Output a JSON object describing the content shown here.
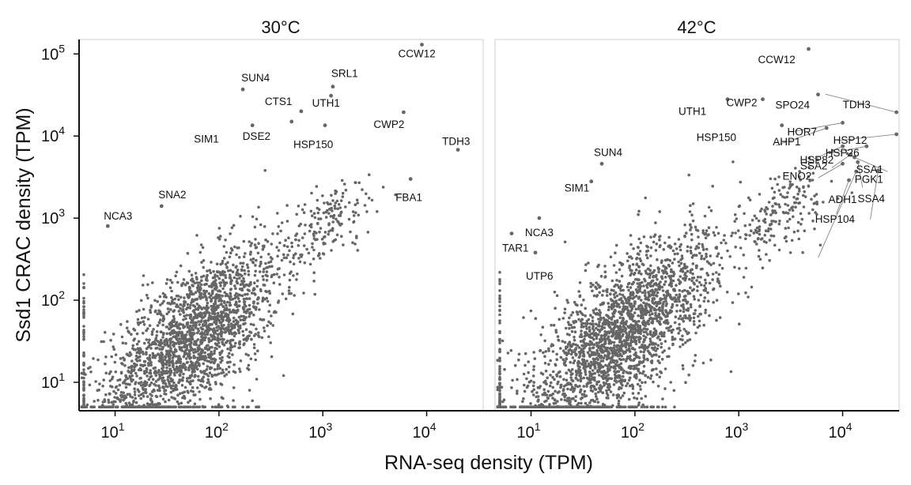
{
  "chart_data": {
    "type": "scatter",
    "xlabel": "RNA-seq density (TPM)",
    "ylabel": "Ssd1 CRAC density (TPM)",
    "x_scale": "log",
    "y_scale": "log",
    "xlim": [
      4.5,
      35000
    ],
    "ylim": [
      4.5,
      150000
    ],
    "x_ticks": [
      {
        "value": 10,
        "label": "10",
        "exp": "1"
      },
      {
        "value": 100,
        "label": "10",
        "exp": "2"
      },
      {
        "value": 1000,
        "label": "10",
        "exp": "3"
      },
      {
        "value": 10000,
        "label": "10",
        "exp": "4"
      }
    ],
    "y_ticks": [
      {
        "value": 10,
        "label": "10",
        "exp": "1"
      },
      {
        "value": 100,
        "label": "10",
        "exp": "2"
      },
      {
        "value": 1000,
        "label": "10",
        "exp": "3"
      },
      {
        "value": 10000,
        "label": "10",
        "exp": "4"
      },
      {
        "value": 100000,
        "label": "10",
        "exp": "5"
      }
    ],
    "grid": false,
    "point_color": "#666666",
    "panels": [
      {
        "title": "30°C",
        "labeled_points": [
          {
            "name": "CCW12",
            "x": 9000,
            "y": 130000
          },
          {
            "name": "SUN4",
            "x": 170,
            "y": 37000
          },
          {
            "name": "SRL1",
            "x": 1250,
            "y": 40000
          },
          {
            "name": "CTS1",
            "x": 620,
            "y": 20000
          },
          {
            "name": "UTH1",
            "x": 1200,
            "y": 31000
          },
          {
            "name": "SIM1",
            "x": 210,
            "y": 13500
          },
          {
            "name": "DSE2",
            "x": 500,
            "y": 15000
          },
          {
            "name": "HSP150",
            "x": 1050,
            "y": 13500
          },
          {
            "name": "CWP2",
            "x": 6000,
            "y": 19500
          },
          {
            "name": "TDH3",
            "x": 20000,
            "y": 6800
          },
          {
            "name": "FBA1",
            "x": 7000,
            "y": 3000
          },
          {
            "name": "SNA2",
            "x": 28,
            "y": 1400
          },
          {
            "name": "NCA3",
            "x": 8.5,
            "y": 800
          }
        ]
      },
      {
        "title": "42°C",
        "labeled_points": [
          {
            "name": "CCW12",
            "x": 4700,
            "y": 115000
          },
          {
            "name": "SPO24",
            "x": 5800,
            "y": 32000
          },
          {
            "name": "TDH3",
            "x": 33000,
            "y": 19500
          },
          {
            "name": "CWP2",
            "x": 1700,
            "y": 28000
          },
          {
            "name": "UTH1",
            "x": 780,
            "y": 28000
          },
          {
            "name": "HOR7",
            "x": 10000,
            "y": 14500
          },
          {
            "name": "HSP12",
            "x": 33000,
            "y": 10500
          },
          {
            "name": "HSP150",
            "x": 2600,
            "y": 13500
          },
          {
            "name": "AHP1",
            "x": 7000,
            "y": 12500
          },
          {
            "name": "HSP82",
            "x": 10000,
            "y": 7500
          },
          {
            "name": "HSP26",
            "x": 17000,
            "y": 7500
          },
          {
            "name": "SSA2",
            "x": 12000,
            "y": 6000
          },
          {
            "name": "SSA1",
            "x": 13000,
            "y": 5500
          },
          {
            "name": "SUN4",
            "x": 48,
            "y": 4600
          },
          {
            "name": "ENO2",
            "x": 10000,
            "y": 4600
          },
          {
            "name": "PGK1",
            "x": 14000,
            "y": 4800
          },
          {
            "name": "SIM1",
            "x": 38,
            "y": 2800
          },
          {
            "name": "NCA3",
            "x": 12,
            "y": 1000
          },
          {
            "name": "ADH1",
            "x": 11500,
            "y": 2900
          },
          {
            "name": "SSA4",
            "x": 22000,
            "y": 3800
          },
          {
            "name": "HSP104",
            "x": 13500,
            "y": 3700
          },
          {
            "name": "TAR1",
            "x": 6.5,
            "y": 650
          },
          {
            "name": "UTP6",
            "x": 11,
            "y": 380
          }
        ]
      }
    ]
  }
}
